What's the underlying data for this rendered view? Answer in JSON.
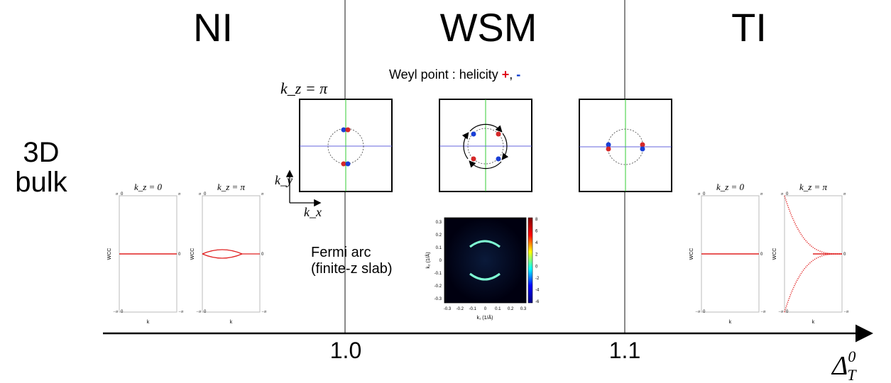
{
  "phases": {
    "ni": "NI",
    "wsm": "WSM",
    "ti": "TI"
  },
  "row_label": {
    "line1": "3D",
    "line2": "bulk"
  },
  "weyl": {
    "prefix": "Weyl point : helicity ",
    "plus": "+",
    "sep": ", ",
    "minus": "-",
    "plus_color": "#e0001b",
    "minus_color": "#0033cc"
  },
  "bz_label": "k_z = π",
  "axes_labels": {
    "ky": "k_y",
    "kx": "k_x"
  },
  "fermi_arc": {
    "line1": "Fermi arc",
    "line2": "(finite-z slab)",
    "x_ticks": [
      "-0.3",
      "-0.2",
      "-0.1",
      "0",
      "0.1",
      "0.2",
      "0.3"
    ],
    "y_ticks": [
      "0.3",
      "0.2",
      "0.1",
      "0",
      "-0.1",
      "-0.2",
      "-0.3"
    ],
    "colorbar_ticks": [
      "8",
      "6",
      "4",
      "2",
      "0",
      "-2",
      "-4",
      "-6"
    ],
    "xlabel": "k₁ (1/Å)",
    "ylabel": "k₂ (1/Å)"
  },
  "wcc_panels": [
    {
      "title": "k_z = 0",
      "ylabel": "WCC",
      "xlabel": "k",
      "top": "π",
      "bottom": "−π",
      "zero": "0",
      "shape": "flat"
    },
    {
      "title": "k_z = π",
      "ylabel": "WCC",
      "xlabel": "k",
      "top": "π",
      "bottom": "−π",
      "zero": "0",
      "shape": "lens"
    },
    {
      "title": "k_z = 0",
      "ylabel": "WCC",
      "xlabel": "k",
      "top": "π",
      "bottom": "−π",
      "zero": "0",
      "shape": "flat"
    },
    {
      "title": "k_z = π",
      "ylabel": "WCC",
      "xlabel": "k",
      "top": "π",
      "bottom": "−π",
      "zero": "0",
      "shape": "winding"
    }
  ],
  "axis": {
    "tick1": "1.0",
    "tick2": "1.1",
    "label": "Δ_T^0"
  }
}
